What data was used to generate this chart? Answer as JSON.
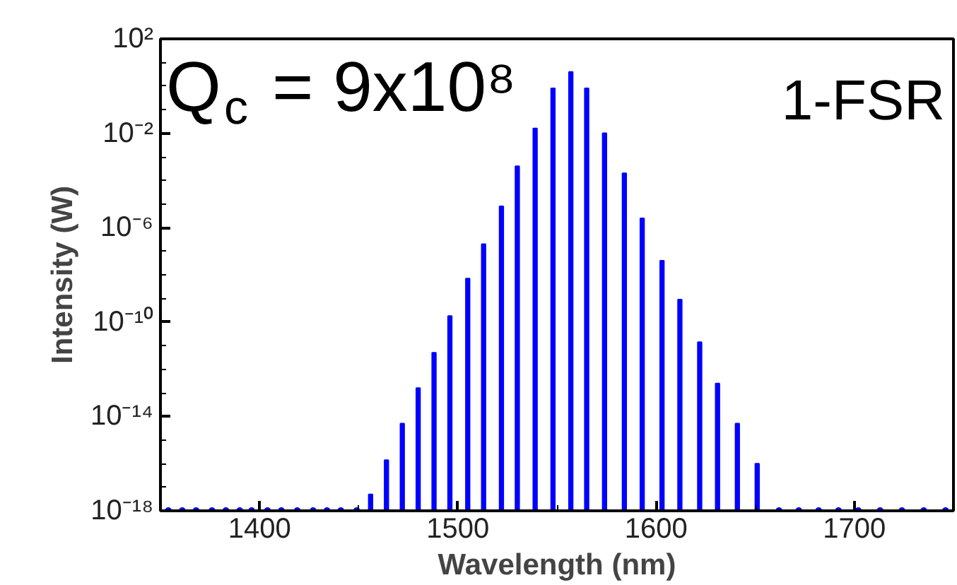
{
  "chart_data": {
    "type": "bar",
    "xlabel": "Wavelength (nm)",
    "ylabel": "Intensity (W)",
    "log": "y",
    "xlim": [
      1350,
      1750
    ],
    "xticks": [
      1400,
      1500,
      1600,
      1700
    ],
    "ylim": [
      1e-18,
      100
    ],
    "yticks": [
      {
        "value": 100,
        "label": "10²"
      },
      {
        "value": 0.01,
        "label": "10⁻²"
      },
      {
        "value": 1e-06,
        "label": "10⁻⁶"
      },
      {
        "value": 1e-10,
        "label": "10⁻¹⁰"
      },
      {
        "value": 1e-14,
        "label": "10⁻¹⁴"
      },
      {
        "value": 1e-18,
        "label": "10⁻¹⁸"
      }
    ],
    "grid": false,
    "annotations": [
      "Q$_{c}$ = 9x10⁸",
      "1-FSR"
    ],
    "series": [
      {
        "color": "#0000ff",
        "x": [
          1456,
          1464,
          1472,
          1480,
          1488,
          1496,
          1505,
          1513,
          1522,
          1530,
          1539,
          1548,
          1557,
          1565,
          1574,
          1584,
          1593,
          1603,
          1612,
          1622,
          1631,
          1641,
          1651
        ],
        "values": [
          5e-18,
          1.4e-16,
          5e-15,
          1.6e-13,
          5e-12,
          1.8e-10,
          7e-09,
          2e-07,
          8e-06,
          0.0004,
          0.016,
          0.8,
          4,
          0.8,
          0.01,
          0.0002,
          2.5e-06,
          4e-08,
          9e-10,
          1.4e-11,
          2.5e-13,
          5e-15,
          1e-16
        ]
      },
      {
        "type": "scatter",
        "color": "#0000ff",
        "marker": "circle",
        "x": [
          1354,
          1361,
          1368,
          1376,
          1383,
          1390,
          1396,
          1404,
          1411,
          1419,
          1427,
          1434,
          1441,
          1449,
          1662,
          1672,
          1682,
          1692,
          1702,
          1713,
          1724,
          1735,
          1746
        ],
        "values": [
          1e-18,
          1e-18,
          1e-18,
          1e-18,
          1e-18,
          1e-18,
          1e-18,
          1e-18,
          1e-18,
          1e-18,
          1e-18,
          1e-18,
          1e-18,
          1e-18,
          1e-18,
          1e-18,
          1e-18,
          1e-18,
          1e-18,
          1e-18,
          1e-18,
          1e-18,
          1e-18
        ]
      }
    ]
  }
}
